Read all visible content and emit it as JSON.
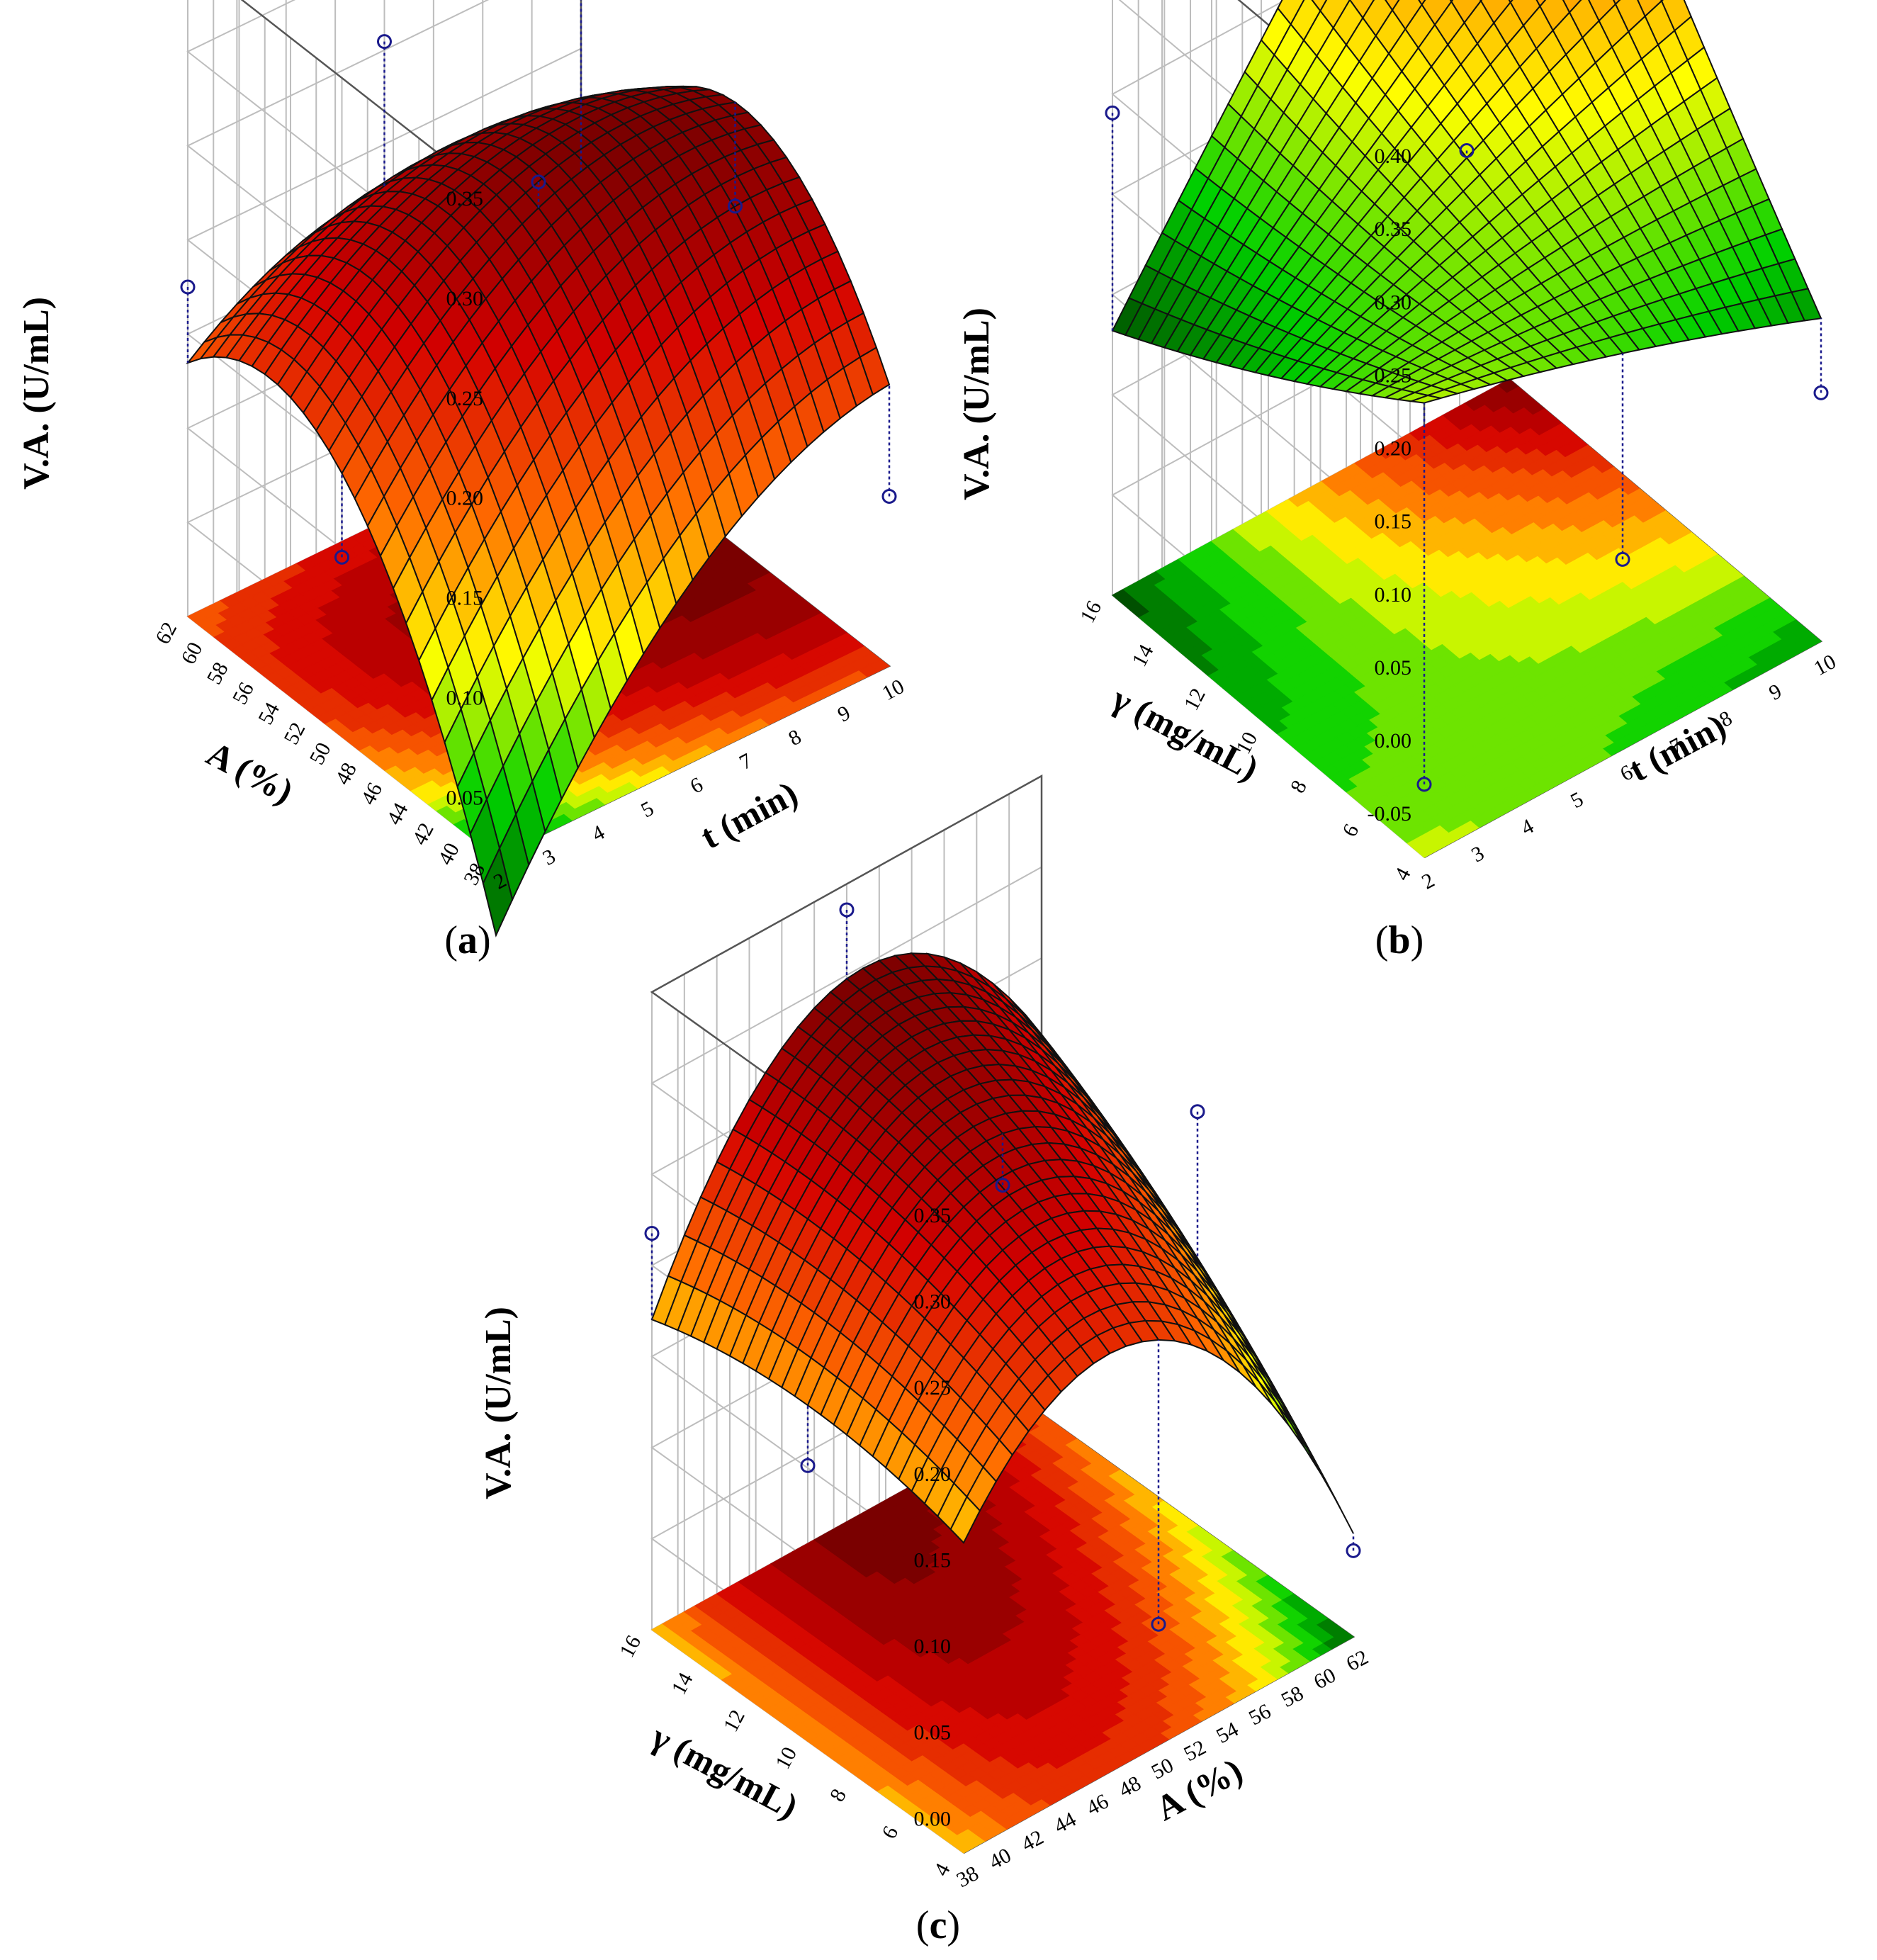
{
  "figure": {
    "panel_letters": [
      "a",
      "b",
      "c"
    ]
  },
  "colors": {
    "dark_red": "#7a0000",
    "red": "#d40000",
    "orange": "#ff6a00",
    "yellow": "#ffff00",
    "green": "#00d000",
    "dark_green": "#005000",
    "points": "#1a1a8c"
  },
  "chart_data": [
    {
      "type": "surface3d",
      "panel": "a",
      "zlabel": "V.A. (U/mL)",
      "xlabel": "t (min)",
      "ylabel": "A (%)",
      "x_ticks": [
        "2",
        "3",
        "4",
        "5",
        "6",
        "7",
        "8",
        "9",
        "10"
      ],
      "y_ticks": [
        "38",
        "40",
        "42",
        "44",
        "46",
        "48",
        "50",
        "52",
        "54",
        "56",
        "58",
        "60",
        "62"
      ],
      "z_ticks": [
        "0.05",
        "0.10",
        "0.15",
        "0.20",
        "0.25",
        "0.30",
        "0.35"
      ],
      "xlim": [
        2,
        10
      ],
      "ylim": [
        38,
        62
      ],
      "zlim": [
        0.02,
        0.35
      ],
      "model": {
        "b0": 0.237,
        "bx": 0.045,
        "by": 0.038,
        "bxx": -0.04,
        "byy": -0.088,
        "bxy": -0.045
      },
      "points": [
        [
          2,
          62,
          0.185
        ],
        [
          2,
          50,
          0.11
        ],
        [
          6,
          62,
          0.26
        ],
        [
          6,
          50,
          0.25
        ],
        [
          10,
          62,
          0.325
        ],
        [
          10,
          50,
          0.19
        ],
        [
          10,
          38,
          0.105
        ]
      ]
    },
    {
      "type": "surface3d",
      "panel": "b",
      "zlabel": "V.A. (U/mL)",
      "xlabel": "t (min)",
      "ylabel": "γ (mg/mL)",
      "x_ticks": [
        "2",
        "3",
        "4",
        "5",
        "6",
        "7",
        "8",
        "9",
        "10"
      ],
      "y_ticks": [
        "4",
        "6",
        "8",
        "10",
        "12",
        "14",
        "16"
      ],
      "z_ticks": [
        "-0.05",
        "0.00",
        "0.05",
        "0.10",
        "0.15",
        "0.20",
        "0.25",
        "0.30",
        "0.35",
        "0.40"
      ],
      "xlim": [
        2,
        10
      ],
      "ylim": [
        4,
        16
      ],
      "zlim": [
        -0.08,
        0.4
      ],
      "model": {
        "b0": 0.235,
        "bx": 0.07,
        "by": 0.05,
        "bxx": -0.005,
        "byy": 0.006,
        "bxy": 0.115
      },
      "points": [
        [
          2,
          16,
          0.25
        ],
        [
          6,
          10,
          0.24
        ],
        [
          10,
          16,
          0.375
        ],
        [
          10,
          4,
          0.09
        ],
        [
          2,
          4,
          -0.03
        ],
        [
          6,
          4,
          0.05
        ]
      ]
    },
    {
      "type": "surface3d",
      "panel": "c",
      "zlabel": "V.A. (U/mL)",
      "xlabel": "A (%)",
      "ylabel": "γ (mg/mL)",
      "x_ticks": [
        "38",
        "40",
        "42",
        "44",
        "46",
        "48",
        "50",
        "52",
        "54",
        "56",
        "58",
        "60",
        "62"
      ],
      "y_ticks": [
        "4",
        "6",
        "8",
        "10",
        "12",
        "14",
        "16"
      ],
      "z_ticks": [
        "0.00",
        "0.05",
        "0.10",
        "0.15",
        "0.20",
        "0.25",
        "0.30",
        "0.35"
      ],
      "xlim": [
        38,
        62
      ],
      "ylim": [
        4,
        16
      ],
      "zlim": [
        -0.02,
        0.35
      ],
      "model": {
        "b0": 0.27,
        "bx": -0.02,
        "by": 0.04,
        "bxx": -0.115,
        "byy": -0.015,
        "bxy": 0.04
      },
      "points": [
        [
          50,
          16,
          0.335
        ],
        [
          38,
          16,
          0.21
        ],
        [
          50,
          10,
          0.24
        ],
        [
          62,
          10,
          0.22
        ],
        [
          38,
          10,
          0.14
        ],
        [
          50,
          4,
          0.05
        ],
        [
          62,
          4,
          0.03
        ]
      ]
    }
  ]
}
